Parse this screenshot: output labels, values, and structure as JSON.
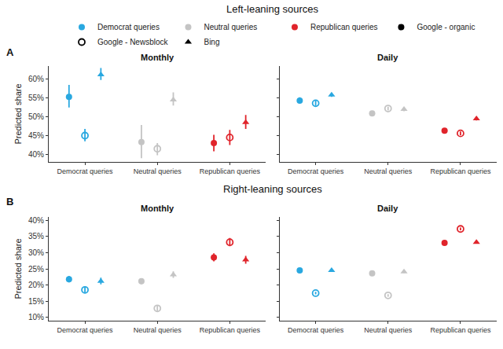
{
  "headings": [
    {
      "letter": "A",
      "text": "Left-leaning sources"
    },
    {
      "letter": "B",
      "text": "Right-leaning sources"
    }
  ],
  "chart_data": [
    {
      "type": "scatter",
      "title": "Monthly",
      "y_label": "Predicted share",
      "categories": [
        "Democrat queries",
        "Neutral queries",
        "Republican queries"
      ],
      "colors": [
        "#29A8E0",
        "#C4C4C4",
        "#E0242B"
      ],
      "ylim": [
        38,
        63.5
      ],
      "yticks": [
        {
          "value": 40,
          "label": "40%"
        },
        {
          "value": 45,
          "label": "45%"
        },
        {
          "value": 50,
          "label": "50%"
        },
        {
          "value": 55,
          "label": "55%"
        },
        {
          "value": 60,
          "label": "60%"
        }
      ],
      "grid": false,
      "series": [
        {
          "name": "Google - organic",
          "color": "#000000",
          "marker": "circle",
          "values": [
            55.3,
            43.3,
            43.0
          ],
          "lower": [
            52.5,
            39.0,
            40.8
          ],
          "upper": [
            58.5,
            47.8,
            45.2
          ]
        },
        {
          "name": "Google - Newsblock",
          "color": "#000000",
          "marker": "circle-open",
          "values": [
            45.0,
            41.5,
            44.5
          ],
          "lower": [
            43.5,
            39.8,
            42.5
          ],
          "upper": [
            46.8,
            43.0,
            46.5
          ]
        },
        {
          "name": "Bing",
          "color": "#000000",
          "marker": "triangle-up",
          "values": [
            61.2,
            54.5,
            48.5
          ],
          "lower": [
            59.8,
            53.0,
            46.8
          ],
          "upper": [
            63.0,
            56.5,
            50.5
          ]
        }
      ]
    },
    {
      "type": "scatter",
      "title": "Daily",
      "tick_labels": "x",
      "categories": [
        "Democrat queries",
        "Neutral queries",
        "Republican queries"
      ],
      "colors": [
        "#29A8E0",
        "#C4C4C4",
        "#E0242B"
      ],
      "ylim": [
        38,
        63.5
      ],
      "yticks": [
        {
          "value": 40,
          "label": "40%"
        },
        {
          "value": 45,
          "label": "45%"
        },
        {
          "value": 50,
          "label": "50%"
        },
        {
          "value": 55,
          "label": "55%"
        },
        {
          "value": 60,
          "label": "60%"
        }
      ],
      "grid": false,
      "series": [
        {
          "name": "Google - organic",
          "color": "#000000",
          "marker": "circle",
          "values": [
            54.3,
            50.9,
            46.3
          ],
          "lower": [
            53.5,
            50.3,
            45.7
          ],
          "upper": [
            55.2,
            51.5,
            46.9
          ]
        },
        {
          "name": "Google - Newsblock",
          "color": "#000000",
          "marker": "circle-open",
          "values": [
            53.6,
            52.2,
            45.6
          ],
          "lower": [
            52.9,
            51.7,
            45.1
          ],
          "upper": [
            54.3,
            52.7,
            46.1
          ]
        },
        {
          "name": "Bing",
          "color": "#000000",
          "marker": "triangle-up",
          "values": [
            55.8,
            52.0,
            49.5
          ],
          "lower": [
            55.3,
            51.5,
            49.0
          ],
          "upper": [
            56.3,
            52.5,
            50.0
          ]
        }
      ]
    },
    {
      "type": "scatter",
      "title": "Monthly",
      "y_label": "Predicted share",
      "categories": [
        "Democrat queries",
        "Neutral queries",
        "Republican queries"
      ],
      "colors": [
        "#29A8E0",
        "#C4C4C4",
        "#E0242B"
      ],
      "ylim": [
        9,
        41
      ],
      "yticks": [
        {
          "value": 10,
          "label": "10%"
        },
        {
          "value": 15,
          "label": "15%"
        },
        {
          "value": 20,
          "label": "20%"
        },
        {
          "value": 25,
          "label": "25%"
        },
        {
          "value": 30,
          "label": "30%"
        },
        {
          "value": 35,
          "label": "35%"
        },
        {
          "value": 40,
          "label": "40%"
        }
      ],
      "grid": false,
      "series": [
        {
          "name": "Google - organic",
          "color": "#000000",
          "marker": "circle",
          "values": [
            21.8,
            21.2,
            28.5
          ],
          "lower": [
            20.8,
            20.3,
            27.3
          ],
          "upper": [
            22.8,
            22.1,
            29.8
          ]
        },
        {
          "name": "Google - Newsblock",
          "color": "#000000",
          "marker": "circle-open",
          "values": [
            18.5,
            12.8,
            33.2
          ],
          "lower": [
            17.5,
            12.0,
            32.0
          ],
          "upper": [
            19.5,
            13.6,
            34.5
          ]
        },
        {
          "name": "Bing",
          "color": "#000000",
          "marker": "triangle-up",
          "values": [
            21.2,
            23.2,
            27.8
          ],
          "lower": [
            20.2,
            22.2,
            26.6
          ],
          "upper": [
            22.3,
            24.2,
            29.0
          ]
        }
      ]
    },
    {
      "type": "scatter",
      "title": "Daily",
      "tick_labels": "x",
      "categories": [
        "Democrat queries",
        "Neutral queries",
        "Republican queries"
      ],
      "colors": [
        "#29A8E0",
        "#C4C4C4",
        "#E0242B"
      ],
      "ylim": [
        9,
        41
      ],
      "yticks": [
        {
          "value": 10,
          "label": "10%"
        },
        {
          "value": 15,
          "label": "15%"
        },
        {
          "value": 20,
          "label": "20%"
        },
        {
          "value": 25,
          "label": "25%"
        },
        {
          "value": 30,
          "label": "30%"
        },
        {
          "value": 35,
          "label": "35%"
        },
        {
          "value": 40,
          "label": "40%"
        }
      ],
      "grid": false,
      "series": [
        {
          "name": "Google - organic",
          "color": "#000000",
          "marker": "circle",
          "values": [
            24.5,
            23.6,
            33.0
          ],
          "lower": [
            24.1,
            23.2,
            32.6
          ],
          "upper": [
            24.9,
            24.0,
            33.4
          ]
        },
        {
          "name": "Google - Newsblock",
          "color": "#000000",
          "marker": "circle-open",
          "values": [
            17.5,
            16.8,
            37.3
          ],
          "lower": [
            17.1,
            16.4,
            36.9
          ],
          "upper": [
            17.9,
            17.2,
            37.7
          ]
        },
        {
          "name": "Bing",
          "color": "#000000",
          "marker": "triangle-up",
          "values": [
            24.5,
            24.1,
            33.2
          ],
          "lower": [
            24.1,
            23.7,
            32.8
          ],
          "upper": [
            24.9,
            24.5,
            33.6
          ]
        }
      ]
    }
  ]
}
